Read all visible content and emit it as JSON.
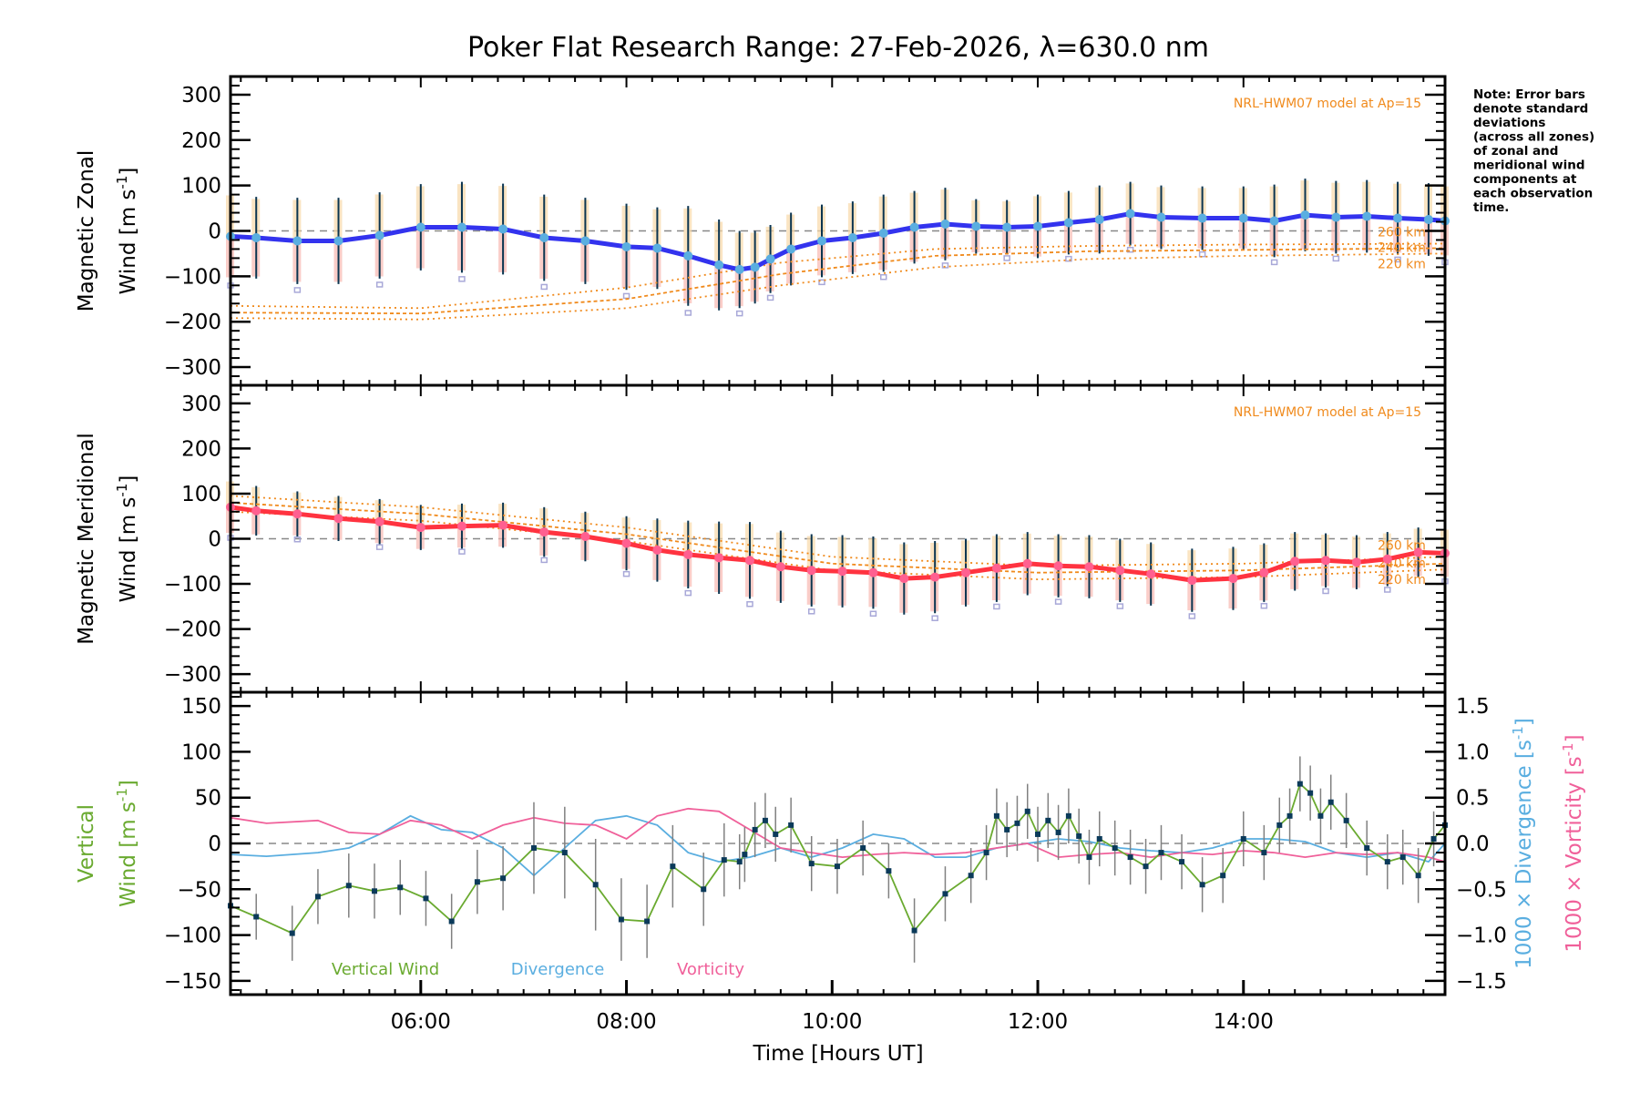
{
  "title": "Poker Flat Research Range: 27-Feb-2026, λ=630.0 nm",
  "note_lines": [
    "Note: Error bars",
    "denote standard",
    "deviations",
    "(across all zones)",
    "of zonal and",
    "meridional wind",
    "components at",
    "each observation",
    "time."
  ],
  "colors": {
    "zonal": "#3333ee",
    "zonal_marker": "#5aaee0",
    "meridional": "#ff3340",
    "meridional_marker": "#ff6090",
    "model": "#f08a1c",
    "errorbar": "#0b3550",
    "vertical": "#6aaa30",
    "divergence": "#5aaee0",
    "vorticity": "#f0609a",
    "zone_points": "#a8a8d8",
    "band_warm": "#f8d8a8",
    "band_pink": "#f8b8b0"
  },
  "chart_data": [
    {
      "type": "line",
      "panel": "zonal",
      "ylabel_line1": "Magnetic Zonal",
      "ylabel_line2": "Wind [m s",
      "ylabel_sup": "-1",
      "ylabel_end": "]",
      "ylim": [
        -340,
        340
      ],
      "yticks": [
        300,
        200,
        100,
        0,
        -100,
        -200,
        -300
      ],
      "xlim": [
        4.15,
        15.96
      ],
      "model_label": "NRL-HWM07 model at Ap=15",
      "model_altitudes": [
        "260 km",
        "240 km",
        "220 km"
      ],
      "series": [
        {
          "name": "Zonal wind",
          "x": [
            4.15,
            4.4,
            4.8,
            5.2,
            5.6,
            6.0,
            6.4,
            6.8,
            7.2,
            7.6,
            8.0,
            8.3,
            8.6,
            8.9,
            9.1,
            9.25,
            9.4,
            9.6,
            9.9,
            10.2,
            10.5,
            10.8,
            11.1,
            11.4,
            11.7,
            12.0,
            12.3,
            12.6,
            12.9,
            13.2,
            13.6,
            14.0,
            14.3,
            14.6,
            14.9,
            15.2,
            15.5,
            15.8,
            15.96
          ],
          "y": [
            -12,
            -15,
            -22,
            -22,
            -10,
            8,
            8,
            4,
            -15,
            -22,
            -35,
            -38,
            -55,
            -75,
            -85,
            -80,
            -62,
            -40,
            -22,
            -15,
            -5,
            8,
            15,
            10,
            8,
            10,
            18,
            25,
            38,
            30,
            28,
            28,
            22,
            35,
            30,
            32,
            28,
            25,
            22
          ],
          "err": [
            95,
            90,
            95,
            95,
            95,
            95,
            100,
            100,
            95,
            95,
            95,
            90,
            110,
            100,
            85,
            80,
            75,
            80,
            80,
            80,
            85,
            80,
            80,
            60,
            60,
            70,
            70,
            75,
            70,
            70,
            70,
            70,
            80,
            80,
            80,
            80,
            80,
            80,
            80
          ]
        },
        {
          "name": "Model 260 km",
          "x": [
            4.15,
            6.0,
            8.0,
            9.5,
            11.0,
            12.5,
            14.0,
            15.96
          ],
          "y": [
            -165,
            -170,
            -125,
            -70,
            -40,
            -33,
            -30,
            -28
          ]
        },
        {
          "name": "Model 240 km",
          "x": [
            4.15,
            6.0,
            8.0,
            9.5,
            11.0,
            12.5,
            14.0,
            15.96
          ],
          "y": [
            -180,
            -182,
            -150,
            -95,
            -55,
            -45,
            -42,
            -38
          ]
        },
        {
          "name": "Model 220 km",
          "x": [
            4.15,
            6.0,
            8.0,
            9.5,
            11.0,
            12.5,
            14.0,
            15.96
          ],
          "y": [
            -192,
            -195,
            -170,
            -120,
            -80,
            -62,
            -55,
            -50
          ]
        }
      ]
    },
    {
      "type": "line",
      "panel": "meridional",
      "ylabel_line1": "Magnetic Meridional",
      "ylabel_line2": "Wind [m s",
      "ylabel_sup": "-1",
      "ylabel_end": "]",
      "ylim": [
        -340,
        340
      ],
      "yticks": [
        300,
        200,
        100,
        0,
        -100,
        -200,
        -300
      ],
      "xlim": [
        4.15,
        15.96
      ],
      "model_label": "NRL-HWM07 model at Ap=15",
      "model_altitudes": [
        "260 km",
        "240 km",
        "220 km"
      ],
      "series": [
        {
          "name": "Meridional wind",
          "x": [
            4.15,
            4.4,
            4.8,
            5.2,
            5.6,
            6.0,
            6.4,
            6.8,
            7.2,
            7.6,
            8.0,
            8.3,
            8.6,
            8.9,
            9.2,
            9.5,
            9.8,
            10.1,
            10.4,
            10.7,
            11.0,
            11.3,
            11.6,
            11.9,
            12.2,
            12.5,
            12.8,
            13.1,
            13.5,
            13.9,
            14.2,
            14.5,
            14.8,
            15.1,
            15.4,
            15.7,
            15.96
          ],
          "y": [
            70,
            62,
            55,
            45,
            38,
            25,
            28,
            30,
            15,
            5,
            -10,
            -25,
            -35,
            -42,
            -48,
            -62,
            -70,
            -72,
            -75,
            -88,
            -85,
            -75,
            -65,
            -55,
            -60,
            -62,
            -70,
            -78,
            -92,
            -88,
            -75,
            -50,
            -48,
            -52,
            -45,
            -30,
            -32
          ],
          "err": [
            60,
            55,
            50,
            50,
            50,
            50,
            50,
            50,
            55,
            55,
            60,
            70,
            75,
            80,
            85,
            80,
            80,
            80,
            80,
            80,
            80,
            75,
            75,
            70,
            70,
            70,
            70,
            70,
            70,
            70,
            65,
            65,
            60,
            60,
            60,
            55,
            55
          ]
        },
        {
          "name": "Model 260 km",
          "x": [
            4.15,
            6.0,
            8.0,
            10.0,
            12.0,
            14.0,
            15.96
          ],
          "y": [
            95,
            70,
            25,
            -40,
            -60,
            -55,
            -40
          ]
        },
        {
          "name": "Model 240 km",
          "x": [
            4.15,
            6.0,
            8.0,
            10.0,
            12.0,
            14.0,
            15.96
          ],
          "y": [
            80,
            55,
            10,
            -55,
            -75,
            -70,
            -55
          ]
        },
        {
          "name": "Model 220 km",
          "x": [
            4.15,
            6.0,
            8.0,
            10.0,
            12.0,
            14.0,
            15.96
          ],
          "y": [
            60,
            40,
            -5,
            -70,
            -90,
            -85,
            -68
          ]
        }
      ]
    },
    {
      "type": "line",
      "panel": "vertical",
      "ylabel_line1": "Vertical",
      "ylabel_line2": "Wind [m s",
      "ylabel_sup": "-1",
      "ylabel_end": "]",
      "ylim": [
        -165,
        165
      ],
      "yticks": [
        150,
        100,
        50,
        0,
        -50,
        -100,
        -150
      ],
      "y2ticks": [
        "1.5",
        "1.0",
        "0.5",
        "0.0",
        "−0.5",
        "−1.0",
        "−1.5"
      ],
      "y2ticks_values": [
        1.5,
        1.0,
        0.5,
        0.0,
        -0.5,
        -1.0,
        -1.5
      ],
      "y2lim": [
        -1.65,
        1.65
      ],
      "y2label_div": "1000 × Divergence [s",
      "y2label_vort": "1000 × Vorticity [s",
      "xlabel": "Time [Hours UT]",
      "xticks": [
        "06:00",
        "08:00",
        "10:00",
        "12:00",
        "14:00"
      ],
      "xticks_values": [
        6,
        8,
        10,
        12,
        14
      ],
      "xlim": [
        4.15,
        15.96
      ],
      "legend": [
        "Vertical Wind",
        "Divergence",
        "Vorticity"
      ],
      "series": [
        {
          "name": "Vertical Wind",
          "x": [
            4.15,
            4.4,
            4.75,
            5.0,
            5.3,
            5.55,
            5.8,
            6.05,
            6.3,
            6.55,
            6.8,
            7.1,
            7.4,
            7.7,
            7.95,
            8.2,
            8.45,
            8.75,
            8.95,
            9.1,
            9.15,
            9.25,
            9.35,
            9.45,
            9.6,
            9.8,
            10.05,
            10.3,
            10.55,
            10.8,
            11.1,
            11.35,
            11.5,
            11.6,
            11.7,
            11.8,
            11.9,
            12.0,
            12.1,
            12.2,
            12.3,
            12.4,
            12.5,
            12.6,
            12.75,
            12.9,
            13.05,
            13.2,
            13.4,
            13.6,
            13.8,
            14.0,
            14.2,
            14.35,
            14.45,
            14.55,
            14.65,
            14.75,
            14.85,
            15.0,
            15.2,
            15.4,
            15.55,
            15.7,
            15.85,
            15.96
          ],
          "y": [
            -68,
            -80,
            -98,
            -58,
            -46,
            -52,
            -48,
            -60,
            -85,
            -42,
            -38,
            -5,
            -10,
            -45,
            -83,
            -85,
            -25,
            -50,
            -18,
            -20,
            -12,
            15,
            25,
            10,
            20,
            -22,
            -25,
            -5,
            -30,
            -95,
            -55,
            -35,
            -10,
            30,
            15,
            22,
            35,
            10,
            25,
            12,
            30,
            8,
            -15,
            5,
            -5,
            -15,
            -25,
            -10,
            -20,
            -45,
            -35,
            5,
            -10,
            20,
            30,
            65,
            55,
            30,
            45,
            25,
            -5,
            -20,
            -15,
            -35,
            5,
            20
          ],
          "err": [
            25,
            25,
            30,
            30,
            35,
            30,
            30,
            30,
            30,
            35,
            35,
            50,
            50,
            50,
            45,
            40,
            45,
            40,
            40,
            30,
            30,
            30,
            30,
            30,
            30,
            30,
            30,
            30,
            30,
            35,
            30,
            30,
            30,
            30,
            30,
            30,
            30,
            30,
            30,
            30,
            30,
            30,
            30,
            30,
            30,
            30,
            30,
            30,
            30,
            30,
            30,
            30,
            30,
            30,
            30,
            30,
            30,
            30,
            30,
            30,
            30,
            30,
            30,
            30,
            30,
            30
          ]
        },
        {
          "name": "Divergence",
          "x": [
            4.15,
            4.5,
            5.0,
            5.3,
            5.6,
            5.9,
            6.2,
            6.5,
            6.8,
            7.1,
            7.4,
            7.7,
            8.0,
            8.3,
            8.6,
            8.9,
            9.2,
            9.5,
            9.8,
            10.1,
            10.4,
            10.7,
            11.0,
            11.3,
            11.6,
            11.9,
            12.2,
            12.5,
            12.8,
            13.1,
            13.4,
            13.7,
            14.0,
            14.3,
            14.6,
            14.9,
            15.2,
            15.5,
            15.8,
            15.96
          ],
          "y": [
            -0.12,
            -0.14,
            -0.1,
            -0.05,
            0.1,
            0.3,
            0.15,
            0.12,
            -0.05,
            -0.35,
            -0.05,
            0.25,
            0.3,
            0.2,
            -0.1,
            -0.2,
            -0.15,
            -0.05,
            -0.15,
            -0.05,
            0.1,
            0.05,
            -0.15,
            -0.15,
            -0.05,
            0.0,
            0.05,
            0.02,
            -0.05,
            -0.08,
            -0.1,
            -0.05,
            0.05,
            0.05,
            0.02,
            -0.1,
            -0.15,
            -0.1,
            -0.2,
            0.0
          ]
        },
        {
          "name": "Vorticity",
          "x": [
            4.15,
            4.5,
            5.0,
            5.3,
            5.6,
            5.9,
            6.2,
            6.5,
            6.8,
            7.1,
            7.4,
            7.7,
            8.0,
            8.3,
            8.6,
            8.9,
            9.2,
            9.5,
            9.8,
            10.1,
            10.4,
            10.7,
            11.0,
            11.3,
            11.6,
            11.9,
            12.2,
            12.5,
            12.8,
            13.1,
            13.4,
            13.7,
            14.0,
            14.3,
            14.6,
            14.9,
            15.2,
            15.5,
            15.8,
            15.96
          ],
          "y": [
            0.28,
            0.22,
            0.25,
            0.12,
            0.1,
            0.25,
            0.2,
            0.05,
            0.2,
            0.28,
            0.22,
            0.2,
            0.05,
            0.3,
            0.38,
            0.35,
            0.15,
            -0.05,
            -0.1,
            -0.15,
            -0.12,
            -0.1,
            -0.12,
            -0.1,
            -0.05,
            0.0,
            -0.15,
            -0.12,
            -0.1,
            -0.15,
            -0.1,
            -0.12,
            -0.08,
            -0.1,
            -0.15,
            -0.1,
            -0.12,
            -0.1,
            -0.15,
            -0.2
          ]
        }
      ]
    }
  ]
}
